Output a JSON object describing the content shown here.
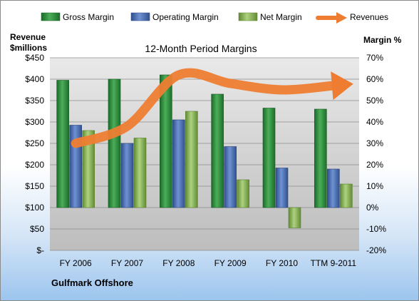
{
  "chart_data": {
    "type": "bar",
    "title": "12-Month Period Margins",
    "company": "Gulfmark Offshore",
    "y_left_label_line1": "Revenue",
    "y_left_label_line2": "$millions",
    "y_right_label": "Margin %",
    "categories": [
      "FY 2006",
      "FY 2007",
      "FY 2008",
      "FY 2009",
      "FY 2010",
      "TTM 9-2011"
    ],
    "left_axis": {
      "min": 0,
      "max": 450,
      "step": 50,
      "tick_labels": [
        "$-",
        "$50",
        "$100",
        "$150",
        "$200",
        "$250",
        "$300",
        "$350",
        "$400",
        "$450"
      ]
    },
    "right_axis": {
      "min": -20,
      "max": 70,
      "step": 10,
      "tick_labels": [
        "-20%",
        "-10%",
        "0%",
        "10%",
        "20%",
        "30%",
        "40%",
        "50%",
        "60%",
        "70%"
      ]
    },
    "grid": true,
    "legend_position": "top",
    "series": [
      {
        "name": "Gross Margin",
        "axis": "right",
        "color": "#2e8b3e",
        "values": [
          59.5,
          60,
          62,
          53,
          46.5,
          46
        ]
      },
      {
        "name": "Operating Margin",
        "axis": "right",
        "color": "#4a6fb5",
        "values": [
          38.5,
          30,
          41,
          28.5,
          18.5,
          18
        ]
      },
      {
        "name": "Net Margin",
        "axis": "right",
        "color": "#8db55a",
        "values": [
          36,
          32.5,
          45,
          13,
          -9.5,
          11
        ]
      },
      {
        "name": "Revenues",
        "axis": "left",
        "type": "line",
        "color": "#ee7d31",
        "values": [
          250,
          290,
          410,
          390,
          375,
          385
        ]
      }
    ]
  }
}
